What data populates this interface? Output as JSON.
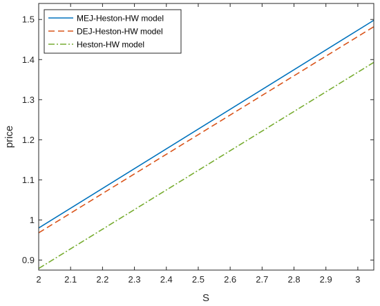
{
  "chart_data": {
    "type": "line",
    "title": "",
    "xlabel": "S",
    "ylabel": "price",
    "xlim": [
      2,
      3.05
    ],
    "ylim": [
      0.875,
      1.54
    ],
    "x_ticks": [
      2,
      2.1,
      2.2,
      2.3,
      2.4,
      2.5,
      2.6,
      2.7,
      2.8,
      2.9,
      3
    ],
    "x_tick_labels": [
      "2",
      "2.1",
      "2.2",
      "2.3",
      "2.4",
      "2.5",
      "2.6",
      "2.7",
      "2.8",
      "2.9",
      "3"
    ],
    "y_ticks": [
      0.9,
      1.0,
      1.1,
      1.2,
      1.3,
      1.4,
      1.5
    ],
    "y_tick_labels": [
      "0.9",
      "1",
      "1.1",
      "1.2",
      "1.3",
      "1.4",
      "1.5"
    ],
    "grid": false,
    "legend_position": "top-left",
    "series": [
      {
        "name": "MEJ-Heston-HW model",
        "color": "#0072bd",
        "style": "solid",
        "x": [
          2,
          3.05
        ],
        "y": [
          0.98,
          1.498
        ]
      },
      {
        "name": "DEJ-Heston-HW model",
        "color": "#d95319",
        "style": "dashed",
        "x": [
          2,
          3.05
        ],
        "y": [
          0.968,
          1.482
        ]
      },
      {
        "name": "Heston-HW model",
        "color": "#77ac30",
        "style": "dashdot",
        "x": [
          2,
          3.05
        ],
        "y": [
          0.879,
          1.393
        ]
      }
    ]
  }
}
